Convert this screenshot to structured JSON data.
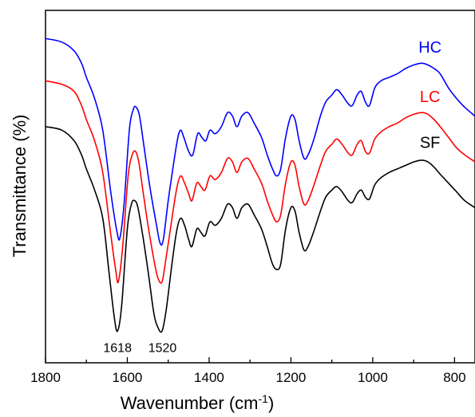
{
  "chart_data": {
    "type": "line",
    "xlabel_main": "Wavenumber (cm",
    "xlabel_sup": "-1",
    "xlabel_end": ")",
    "ylabel": "Transmittance (%)",
    "xlim": [
      1800,
      750
    ],
    "x_reversed": true,
    "ylim": [
      0,
      100
    ],
    "x_ticks": [
      1800,
      1600,
      1400,
      1200,
      1000,
      800
    ],
    "y_tick_labels": false,
    "grid": false,
    "series": [
      {
        "name": "HC",
        "color": "#0000ff",
        "points": [
          [
            1800,
            92
          ],
          [
            1760,
            91
          ],
          [
            1730,
            88.5
          ],
          [
            1712,
            85
          ],
          [
            1700,
            81
          ],
          [
            1680,
            75
          ],
          [
            1660,
            66
          ],
          [
            1640,
            48
          ],
          [
            1625,
            37
          ],
          [
            1618,
            35.5
          ],
          [
            1608,
            45
          ],
          [
            1595,
            66
          ],
          [
            1585,
            72
          ],
          [
            1578,
            72.5
          ],
          [
            1570,
            70
          ],
          [
            1560,
            62
          ],
          [
            1545,
            50
          ],
          [
            1530,
            40
          ],
          [
            1520,
            34
          ],
          [
            1512,
            35
          ],
          [
            1500,
            46
          ],
          [
            1490,
            54
          ],
          [
            1478,
            63
          ],
          [
            1470,
            66
          ],
          [
            1462,
            64
          ],
          [
            1450,
            60
          ],
          [
            1440,
            59
          ],
          [
            1428,
            65
          ],
          [
            1418,
            64
          ],
          [
            1408,
            63
          ],
          [
            1398,
            66
          ],
          [
            1385,
            65
          ],
          [
            1370,
            67
          ],
          [
            1355,
            71
          ],
          [
            1343,
            70
          ],
          [
            1332,
            67
          ],
          [
            1320,
            70
          ],
          [
            1305,
            71
          ],
          [
            1290,
            68
          ],
          [
            1272,
            64
          ],
          [
            1258,
            59
          ],
          [
            1245,
            55
          ],
          [
            1235,
            53
          ],
          [
            1225,
            55
          ],
          [
            1213,
            64
          ],
          [
            1200,
            70
          ],
          [
            1190,
            69
          ],
          [
            1180,
            63
          ],
          [
            1168,
            58
          ],
          [
            1158,
            59
          ],
          [
            1145,
            63
          ],
          [
            1128,
            70
          ],
          [
            1115,
            74
          ],
          [
            1100,
            76
          ],
          [
            1088,
            77.5
          ],
          [
            1075,
            76
          ],
          [
            1060,
            73.5
          ],
          [
            1050,
            73
          ],
          [
            1038,
            76
          ],
          [
            1028,
            77
          ],
          [
            1018,
            74
          ],
          [
            1008,
            73
          ],
          [
            995,
            78
          ],
          [
            980,
            80
          ],
          [
            960,
            81
          ],
          [
            940,
            82
          ],
          [
            920,
            83.5
          ],
          [
            900,
            84.5
          ],
          [
            880,
            85
          ],
          [
            865,
            84.5
          ],
          [
            850,
            83.5
          ],
          [
            835,
            82
          ],
          [
            815,
            78
          ],
          [
            795,
            75
          ],
          [
            775,
            72.5
          ],
          [
            750,
            70
          ]
        ]
      },
      {
        "name": "LC",
        "color": "#ff0000",
        "points": [
          [
            1800,
            80
          ],
          [
            1760,
            79
          ],
          [
            1730,
            77
          ],
          [
            1712,
            73
          ],
          [
            1700,
            69
          ],
          [
            1680,
            63
          ],
          [
            1660,
            54
          ],
          [
            1640,
            36
          ],
          [
            1628,
            26
          ],
          [
            1622,
            23
          ],
          [
            1612,
            32
          ],
          [
            1598,
            53
          ],
          [
            1588,
            59
          ],
          [
            1580,
            60
          ],
          [
            1572,
            57
          ],
          [
            1562,
            49
          ],
          [
            1548,
            38
          ],
          [
            1533,
            28
          ],
          [
            1525,
            24
          ],
          [
            1515,
            23
          ],
          [
            1505,
            30
          ],
          [
            1492,
            40
          ],
          [
            1480,
            49
          ],
          [
            1470,
            53
          ],
          [
            1460,
            51
          ],
          [
            1450,
            48
          ],
          [
            1442,
            46
          ],
          [
            1430,
            51
          ],
          [
            1420,
            50
          ],
          [
            1410,
            49
          ],
          [
            1398,
            53
          ],
          [
            1385,
            52
          ],
          [
            1370,
            54
          ],
          [
            1355,
            58
          ],
          [
            1343,
            57
          ],
          [
            1332,
            54
          ],
          [
            1320,
            57
          ],
          [
            1305,
            58
          ],
          [
            1290,
            55
          ],
          [
            1272,
            51
          ],
          [
            1258,
            46
          ],
          [
            1245,
            42
          ],
          [
            1235,
            40
          ],
          [
            1225,
            42
          ],
          [
            1213,
            51
          ],
          [
            1200,
            57
          ],
          [
            1190,
            56
          ],
          [
            1180,
            50
          ],
          [
            1168,
            45
          ],
          [
            1158,
            46
          ],
          [
            1145,
            50
          ],
          [
            1128,
            56
          ],
          [
            1115,
            60
          ],
          [
            1100,
            62
          ],
          [
            1088,
            63.5
          ],
          [
            1075,
            62
          ],
          [
            1060,
            59.5
          ],
          [
            1050,
            59
          ],
          [
            1038,
            62
          ],
          [
            1028,
            63
          ],
          [
            1018,
            60
          ],
          [
            1008,
            59.5
          ],
          [
            995,
            63.5
          ],
          [
            980,
            65.5
          ],
          [
            960,
            67
          ],
          [
            940,
            68
          ],
          [
            920,
            69.5
          ],
          [
            900,
            70.5
          ],
          [
            880,
            71
          ],
          [
            865,
            70.5
          ],
          [
            850,
            69
          ],
          [
            835,
            67
          ],
          [
            815,
            64
          ],
          [
            795,
            61
          ],
          [
            775,
            59
          ],
          [
            750,
            57
          ]
        ]
      },
      {
        "name": "SF",
        "color": "#000000",
        "points": [
          [
            1800,
            67
          ],
          [
            1760,
            66
          ],
          [
            1730,
            63
          ],
          [
            1712,
            59
          ],
          [
            1700,
            55
          ],
          [
            1680,
            49
          ],
          [
            1660,
            41
          ],
          [
            1645,
            26
          ],
          [
            1632,
            13
          ],
          [
            1624,
            9
          ],
          [
            1614,
            16
          ],
          [
            1600,
            38
          ],
          [
            1590,
            45
          ],
          [
            1582,
            46
          ],
          [
            1574,
            44
          ],
          [
            1562,
            36
          ],
          [
            1548,
            25
          ],
          [
            1535,
            14
          ],
          [
            1525,
            10
          ],
          [
            1515,
            9
          ],
          [
            1505,
            15
          ],
          [
            1492,
            27
          ],
          [
            1480,
            37
          ],
          [
            1470,
            41
          ],
          [
            1460,
            39
          ],
          [
            1450,
            35
          ],
          [
            1442,
            33
          ],
          [
            1430,
            38
          ],
          [
            1420,
            37
          ],
          [
            1410,
            36
          ],
          [
            1398,
            40
          ],
          [
            1385,
            39
          ],
          [
            1370,
            41
          ],
          [
            1355,
            45
          ],
          [
            1343,
            44
          ],
          [
            1332,
            41
          ],
          [
            1320,
            44
          ],
          [
            1305,
            45
          ],
          [
            1290,
            42
          ],
          [
            1272,
            38
          ],
          [
            1258,
            33
          ],
          [
            1245,
            28
          ],
          [
            1235,
            26.5
          ],
          [
            1225,
            28
          ],
          [
            1213,
            38
          ],
          [
            1200,
            44
          ],
          [
            1190,
            43
          ],
          [
            1180,
            37
          ],
          [
            1168,
            32
          ],
          [
            1158,
            33
          ],
          [
            1145,
            37
          ],
          [
            1128,
            43
          ],
          [
            1115,
            47
          ],
          [
            1100,
            49
          ],
          [
            1088,
            50
          ],
          [
            1075,
            48.5
          ],
          [
            1060,
            46
          ],
          [
            1050,
            45.5
          ],
          [
            1038,
            48
          ],
          [
            1028,
            49
          ],
          [
            1018,
            47
          ],
          [
            1008,
            46.5
          ],
          [
            995,
            50.5
          ],
          [
            980,
            52.5
          ],
          [
            960,
            54
          ],
          [
            940,
            55
          ],
          [
            920,
            56
          ],
          [
            900,
            57
          ],
          [
            880,
            57.5
          ],
          [
            865,
            57
          ],
          [
            850,
            55.5
          ],
          [
            835,
            53.5
          ],
          [
            815,
            51
          ],
          [
            795,
            48.5
          ],
          [
            775,
            46
          ],
          [
            750,
            44
          ]
        ]
      }
    ],
    "series_labels": [
      {
        "name": "HC",
        "at": [
          860,
          88
        ]
      },
      {
        "name": "LC",
        "at": [
          860,
          74
        ]
      },
      {
        "name": "SF",
        "at": [
          860,
          61
        ]
      }
    ],
    "annotations": [
      {
        "text": "1618",
        "at": [
          1624,
          3
        ]
      },
      {
        "text": "1520",
        "at": [
          1514,
          3
        ]
      }
    ]
  }
}
